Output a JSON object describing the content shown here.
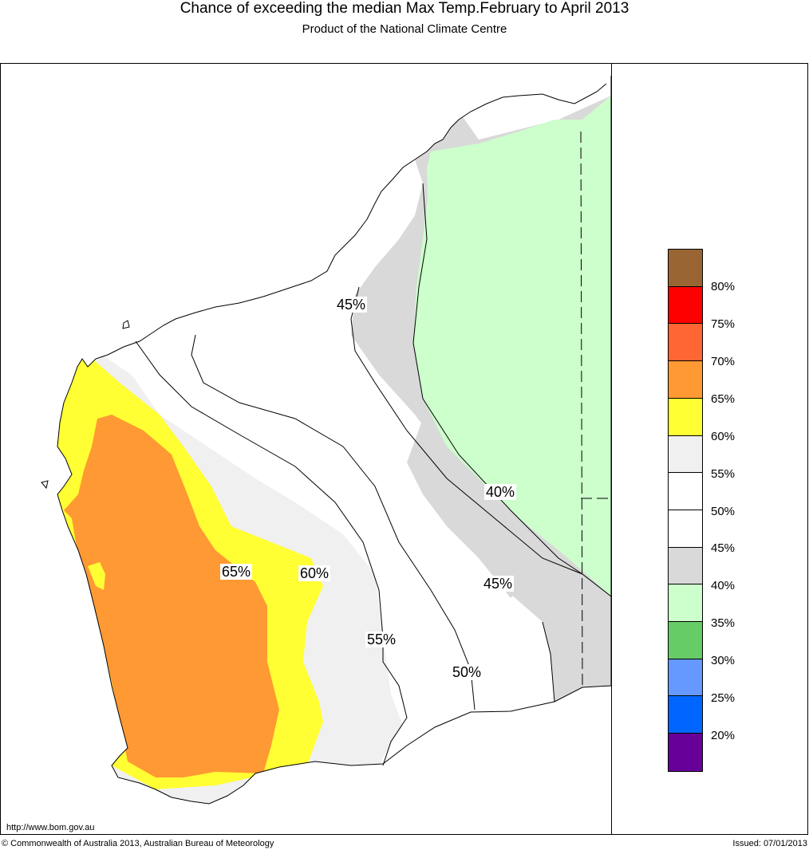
{
  "header": {
    "title": "Chance of exceeding the median Max Temp.February to April 2013",
    "subtitle": "Product of the National Climate Centre"
  },
  "map": {
    "region": "Western Australia",
    "contour_labels": [
      "45%",
      "40%",
      "45%",
      "65%",
      "60%",
      "55%",
      "50%"
    ]
  },
  "legend": {
    "colors": [
      "#996633",
      "#ff0000",
      "#ff6633",
      "#ff9933",
      "#ffff33",
      "#f0f0f0",
      "#ffffff",
      "#ffffff",
      "#d9d9d9",
      "#ccffcc",
      "#66cc66",
      "#6699ff",
      "#0066ff",
      "#660099"
    ],
    "labels": [
      "80%",
      "75%",
      "70%",
      "65%",
      "60%",
      "55%",
      "50%",
      "45%",
      "40%",
      "35%",
      "30%",
      "25%",
      "20%"
    ]
  },
  "footer": {
    "url": "http://www.bom.gov.au",
    "copyright": "© Commonwealth of Australia 2013, Australian Bureau of Meteorology",
    "issued": "Issued: 07/01/2013"
  }
}
